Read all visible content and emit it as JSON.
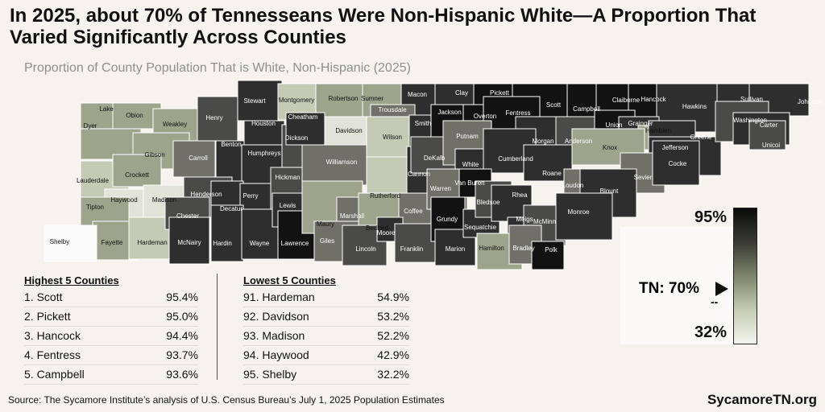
{
  "title": "In 2025, about 70% of Tennesseans Were Non-Hispanic White—A Proportion That Varied Significantly Across Counties",
  "subtitle": "Proportion of County Population That is White, Non-Hispanic (2025)",
  "highest": {
    "heading": "Highest 5 Counties",
    "rows": [
      {
        "rank_name": "1. Scott",
        "value": "95.4%"
      },
      {
        "rank_name": "2. Pickett",
        "value": "95.0%"
      },
      {
        "rank_name": "3. Hancock",
        "value": "94.4%"
      },
      {
        "rank_name": "4. Fentress",
        "value": "93.7%"
      },
      {
        "rank_name": "5. Campbell",
        "value": "93.6%"
      }
    ]
  },
  "lowest": {
    "heading": "Lowest 5 Counties",
    "rows": [
      {
        "rank_name": "91. Hardeman",
        "value": "54.9%"
      },
      {
        "rank_name": "92. Davidson",
        "value": "53.2%"
      },
      {
        "rank_name": "93. Madison",
        "value": "52.2%"
      },
      {
        "rank_name": "94. Haywood",
        "value": "42.9%"
      },
      {
        "rank_name": "95. Shelby",
        "value": "32.2%"
      }
    ]
  },
  "scale": {
    "max_label": "95%",
    "min_label": "32%",
    "state_label": "TN: 70%",
    "state_marker": "--"
  },
  "source": "Source: The Sycamore Institute’s analysis of U.S. Census Bureau’s July 1, 2025 Population Estimates",
  "brand": "SycamoreTN.org",
  "colors": {
    "background": "#f6f2ee",
    "darkest": "#0b0b0b",
    "lightest": "#f3f3ee"
  },
  "counties": [
    {
      "name": "Lake",
      "shade": 4
    },
    {
      "name": "Obion",
      "shade": 4
    },
    {
      "name": "Weakley",
      "shade": 4
    },
    {
      "name": "Henry",
      "shade": 2
    },
    {
      "name": "Stewart",
      "shade": 1
    },
    {
      "name": "Montgomery",
      "shade": 5
    },
    {
      "name": "Robertson",
      "shade": 4
    },
    {
      "name": "Sumner",
      "shade": 4
    },
    {
      "name": "Macon",
      "shade": 1
    },
    {
      "name": "Clay",
      "shade": 1
    },
    {
      "name": "Pickett",
      "shade": 0
    },
    {
      "name": "Scott",
      "shade": 0
    },
    {
      "name": "Campbell",
      "shade": 0
    },
    {
      "name": "Claiborne",
      "shade": 0
    },
    {
      "name": "Hancock",
      "shade": 0
    },
    {
      "name": "Hawkins",
      "shade": 1
    },
    {
      "name": "Sullivan",
      "shade": 1
    },
    {
      "name": "Johnson",
      "shade": 1
    },
    {
      "name": "Dyer",
      "shade": 4
    },
    {
      "name": "Gibson",
      "shade": 4
    },
    {
      "name": "Carroll",
      "shade": 3
    },
    {
      "name": "Benton",
      "shade": 1
    },
    {
      "name": "Houston",
      "shade": 1
    },
    {
      "name": "Humphreys",
      "shade": 1
    },
    {
      "name": "Dickson",
      "shade": 2
    },
    {
      "name": "Cheatham",
      "shade": 1
    },
    {
      "name": "Davidson",
      "shade": 6
    },
    {
      "name": "Trousdale",
      "shade": 3
    },
    {
      "name": "Wilson",
      "shade": 5
    },
    {
      "name": "Smith",
      "shade": 1
    },
    {
      "name": "Jackson",
      "shade": 0
    },
    {
      "name": "Overton",
      "shade": 0
    },
    {
      "name": "Fentress",
      "shade": 0
    },
    {
      "name": "Morgan",
      "shade": 1
    },
    {
      "name": "Anderson",
      "shade": 2
    },
    {
      "name": "Union",
      "shade": 0
    },
    {
      "name": "Grainger",
      "shade": 1
    },
    {
      "name": "Hamblen",
      "shade": 4
    },
    {
      "name": "Jefferson",
      "shade": 1
    },
    {
      "name": "Greene",
      "shade": 1
    },
    {
      "name": "Washington",
      "shade": 2
    },
    {
      "name": "Carter",
      "shade": 1
    },
    {
      "name": "Unicoi",
      "shade": 2
    },
    {
      "name": "Lauderdale",
      "shade": 5
    },
    {
      "name": "Crockett",
      "shade": 4
    },
    {
      "name": "Haywood",
      "shade": 6
    },
    {
      "name": "Madison",
      "shade": 6
    },
    {
      "name": "Henderson",
      "shade": 2
    },
    {
      "name": "Decatur",
      "shade": 1
    },
    {
      "name": "Perry",
      "shade": 1
    },
    {
      "name": "Hickman",
      "shade": 2
    },
    {
      "name": "Williamson",
      "shade": 3
    },
    {
      "name": "Rutherford",
      "shade": 5
    },
    {
      "name": "Cannon",
      "shade": 1
    },
    {
      "name": "DeKalb",
      "shade": 2
    },
    {
      "name": "Putnam",
      "shade": 3
    },
    {
      "name": "White",
      "shade": 1
    },
    {
      "name": "Cumberland",
      "shade": 1
    },
    {
      "name": "Roane",
      "shade": 1
    },
    {
      "name": "Knox",
      "shade": 4
    },
    {
      "name": "Loudon",
      "shade": 3
    },
    {
      "name": "Sevier",
      "shade": 3
    },
    {
      "name": "Cocke",
      "shade": 1
    },
    {
      "name": "Blount",
      "shade": 1
    },
    {
      "name": "Tipton",
      "shade": 4
    },
    {
      "name": "Fayette",
      "shade": 4
    },
    {
      "name": "Hardeman",
      "shade": 5
    },
    {
      "name": "Chester",
      "shade": 2
    },
    {
      "name": "McNairy",
      "shade": 1
    },
    {
      "name": "Hardin",
      "shade": 1
    },
    {
      "name": "Wayne",
      "shade": 1
    },
    {
      "name": "Lewis",
      "shade": 1
    },
    {
      "name": "Lawrence",
      "shade": 0
    },
    {
      "name": "Maury",
      "shade": 4
    },
    {
      "name": "Marshall",
      "shade": 3
    },
    {
      "name": "Giles",
      "shade": 3
    },
    {
      "name": "Bedford",
      "shade": 4
    },
    {
      "name": "Coffee",
      "shade": 3
    },
    {
      "name": "Lincoln",
      "shade": 2
    },
    {
      "name": "Moore",
      "shade": 1
    },
    {
      "name": "Franklin",
      "shade": 2
    },
    {
      "name": "Warren",
      "shade": 3
    },
    {
      "name": "Van Buren",
      "shade": 0
    },
    {
      "name": "Grundy",
      "shade": 0
    },
    {
      "name": "Marion",
      "shade": 1
    },
    {
      "name": "Sequatchie",
      "shade": 1
    },
    {
      "name": "Bledsoe",
      "shade": 2
    },
    {
      "name": "Rhea",
      "shade": 1
    },
    {
      "name": "Meigs",
      "shade": 1
    },
    {
      "name": "McMinn",
      "shade": 2
    },
    {
      "name": "Monroe",
      "shade": 1
    },
    {
      "name": "Hamilton",
      "shade": 4
    },
    {
      "name": "Bradley",
      "shade": 3
    },
    {
      "name": "Polk",
      "shade": 0
    },
    {
      "name": "Shelby",
      "shade": 7
    }
  ]
}
